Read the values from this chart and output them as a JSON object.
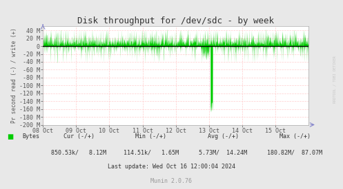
{
  "title": "Disk throughput for /dev/sdc - by week",
  "ylabel": "Pr second read (-) / write (+)",
  "background_color": "#e8e8e8",
  "plot_bg_color": "#ffffff",
  "grid_color": "#ffcccc",
  "line_color": "#00cc00",
  "zero_line_color": "#000000",
  "ylim": [
    -200,
    50
  ],
  "yticks": [
    -200,
    -180,
    -160,
    -140,
    -120,
    -100,
    -80,
    -60,
    -40,
    -20,
    0,
    20,
    40
  ],
  "ytick_labels": [
    "-200 M",
    "-180 M",
    "-160 M",
    "-140 M",
    "-120 M",
    "-100 M",
    "-80 M",
    "-60 M",
    "-40 M",
    "-20 M",
    "0",
    "20 M",
    "40 M"
  ],
  "xlabels": [
    "08 Oct",
    "09 Oct",
    "10 Oct",
    "11 Oct",
    "12 Oct",
    "13 Oct",
    "14 Oct",
    "15 Oct"
  ],
  "legend_label": "Bytes",
  "legend_color": "#00cc00",
  "cur_label": "Cur (-/+)",
  "min_label": "Min (-/+)",
  "avg_label": "Avg (-/+)",
  "max_label": "Max (-/+)",
  "cur_val": "850.53k/   8.12M",
  "min_val": "114.51k/   1.65M",
  "avg_val": "5.73M/  14.24M",
  "max_val": "180.82M/  87.07M",
  "footer_line3": "Last update: Wed Oct 16 12:00:04 2024",
  "footer_munin": "Munin 2.0.76",
  "watermark": "RRDTOOL / TOBI OETIKER",
  "title_fontsize": 9,
  "axis_fontsize": 6,
  "footer_fontsize": 6
}
